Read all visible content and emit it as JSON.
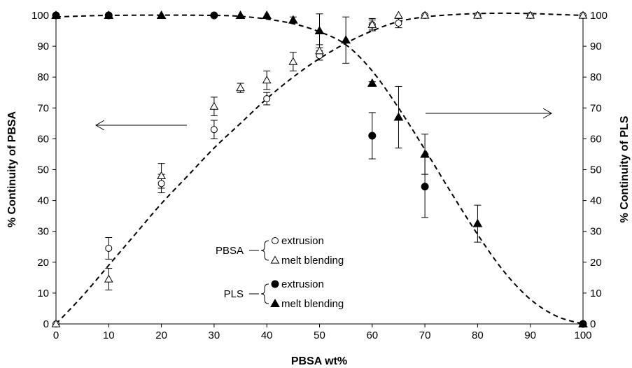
{
  "chart_data": {
    "type": "scatter",
    "xlabel": "PBSA wt%",
    "ylabel_left": "% Continuity of PBSA",
    "ylabel_right": "% Continuity of PLS",
    "xlim": [
      0,
      100
    ],
    "ylim": [
      0,
      100
    ],
    "x_ticks": [
      "0",
      "10",
      "20",
      "30",
      "40",
      "50",
      "60",
      "70",
      "80",
      "90",
      "100"
    ],
    "y_ticks": [
      "0",
      "10",
      "20",
      "30",
      "40",
      "50",
      "60",
      "70",
      "80",
      "90",
      "100"
    ],
    "grid": false,
    "series": [
      {
        "name": "extrusion",
        "group": "PBSA",
        "marker": "open-circle",
        "axis": "left",
        "points": [
          {
            "x": 0,
            "y": 0
          },
          {
            "x": 10,
            "y": 24.5,
            "err": 3.5
          },
          {
            "x": 20,
            "y": 45.5,
            "err": 3
          },
          {
            "x": 30,
            "y": 63,
            "err": 3
          },
          {
            "x": 40,
            "y": 73,
            "err": 2
          },
          {
            "x": 50,
            "y": 87,
            "err": 1.5
          },
          {
            "x": 60,
            "y": 97,
            "err": 1.5
          },
          {
            "x": 65,
            "y": 97.5,
            "err": 1.5
          },
          {
            "x": 70,
            "y": 100
          },
          {
            "x": 80,
            "y": 100
          },
          {
            "x": 90,
            "y": 100
          },
          {
            "x": 100,
            "y": 100
          }
        ]
      },
      {
        "name": "melt blending",
        "group": "PBSA",
        "marker": "open-triangle",
        "axis": "left",
        "points": [
          {
            "x": 0,
            "y": 0
          },
          {
            "x": 10,
            "y": 14.5,
            "err": 3.5
          },
          {
            "x": 20,
            "y": 48,
            "err": 4
          },
          {
            "x": 30,
            "y": 70.5,
            "err": 3
          },
          {
            "x": 35,
            "y": 76.5,
            "err": 1.5
          },
          {
            "x": 40,
            "y": 79,
            "err": 3
          },
          {
            "x": 45,
            "y": 85,
            "err": 3
          },
          {
            "x": 50,
            "y": 88.5,
            "err": 2
          },
          {
            "x": 60,
            "y": 97,
            "err": 2
          },
          {
            "x": 65,
            "y": 100
          },
          {
            "x": 70,
            "y": 100
          },
          {
            "x": 80,
            "y": 100
          },
          {
            "x": 90,
            "y": 100
          },
          {
            "x": 100,
            "y": 100
          }
        ]
      },
      {
        "name": "extrusion",
        "group": "PLS",
        "marker": "filled-circle",
        "axis": "right",
        "points": [
          {
            "x": 0,
            "y": 100
          },
          {
            "x": 10,
            "y": 100
          },
          {
            "x": 30,
            "y": 100
          },
          {
            "x": 60,
            "y": 61,
            "err": 7.5
          },
          {
            "x": 70,
            "y": 44.5,
            "err": 10
          },
          {
            "x": 100,
            "y": 0
          }
        ]
      },
      {
        "name": "melt blending",
        "group": "PLS",
        "marker": "filled-triangle",
        "axis": "right",
        "points": [
          {
            "x": 0,
            "y": 100
          },
          {
            "x": 10,
            "y": 100
          },
          {
            "x": 20,
            "y": 100
          },
          {
            "x": 35,
            "y": 100
          },
          {
            "x": 40,
            "y": 100
          },
          {
            "x": 45,
            "y": 98.5,
            "err": 1
          },
          {
            "x": 50,
            "y": 95,
            "err": 5.5
          },
          {
            "x": 55,
            "y": 92,
            "err": 7.5
          },
          {
            "x": 60,
            "y": 78,
            "err": 0.5
          },
          {
            "x": 65,
            "y": 67,
            "err": 10
          },
          {
            "x": 70,
            "y": 55,
            "err": 6.5
          },
          {
            "x": 80,
            "y": 32.5,
            "err": 6
          },
          {
            "x": 100,
            "y": 0
          }
        ]
      }
    ],
    "fit_curves": [
      {
        "group": "PBSA",
        "points": [
          [
            0,
            0
          ],
          [
            5,
            9
          ],
          [
            10,
            19
          ],
          [
            15,
            29
          ],
          [
            20,
            39
          ],
          [
            25,
            48
          ],
          [
            30,
            57
          ],
          [
            35,
            65
          ],
          [
            40,
            73
          ],
          [
            45,
            80
          ],
          [
            50,
            86
          ],
          [
            55,
            91
          ],
          [
            60,
            95
          ],
          [
            65,
            98
          ],
          [
            70,
            99.5
          ],
          [
            75,
            100.2
          ],
          [
            80,
            100.6
          ],
          [
            85,
            100.7
          ],
          [
            90,
            100.6
          ],
          [
            95,
            100.3
          ],
          [
            100,
            100
          ]
        ]
      },
      {
        "group": "PLS",
        "points": [
          [
            0,
            99.5
          ],
          [
            5,
            99.8
          ],
          [
            10,
            100
          ],
          [
            20,
            100.1
          ],
          [
            30,
            100
          ],
          [
            35,
            99.7
          ],
          [
            40,
            98.8
          ],
          [
            45,
            97.3
          ],
          [
            50,
            94.7
          ],
          [
            55,
            90.5
          ],
          [
            60,
            82
          ],
          [
            65,
            70
          ],
          [
            70,
            56.5
          ],
          [
            75,
            42.5
          ],
          [
            80,
            29
          ],
          [
            85,
            17
          ],
          [
            90,
            8
          ],
          [
            95,
            2.5
          ],
          [
            100,
            0
          ]
        ]
      }
    ],
    "legend": {
      "placement": "center-bottom",
      "groups": [
        {
          "label": "PBSA",
          "entries": [
            {
              "marker": "open-circle",
              "label": "extrusion"
            },
            {
              "marker": "open-triangle",
              "label": "melt blending"
            }
          ]
        },
        {
          "label": "PLS",
          "entries": [
            {
              "marker": "filled-circle",
              "label": "extrusion"
            },
            {
              "marker": "filled-triangle",
              "label": "melt blending"
            }
          ]
        }
      ]
    },
    "annotations": [
      {
        "type": "arrow",
        "direction": "left",
        "meaning": "left axis"
      },
      {
        "type": "arrow",
        "direction": "right",
        "meaning": "right axis"
      }
    ]
  }
}
